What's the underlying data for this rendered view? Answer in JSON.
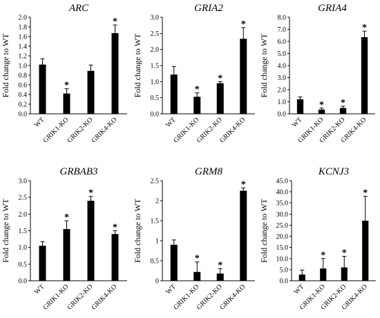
{
  "chart_data": [
    {
      "type": "bar",
      "title": "ARC",
      "ylabel": "Fold change to WT",
      "categories": [
        "WT",
        "GRIK1-KO",
        "GRIK2-KO",
        "GRIK4-KO"
      ],
      "values": [
        1.02,
        0.42,
        0.89,
        1.67
      ],
      "errors": [
        0.12,
        0.1,
        0.12,
        0.17
      ],
      "significant": [
        "",
        "*",
        "",
        "*"
      ],
      "ylim": [
        0,
        2.0
      ],
      "yticks": [
        "0.0",
        "0.2",
        "0.4",
        "0.6",
        "0.8",
        "1.0",
        "1.2",
        "1.4",
        "1.6",
        "1.8",
        "2.0"
      ]
    },
    {
      "type": "bar",
      "title": "GRIA2",
      "ylabel": "Fold change to WT",
      "categories": [
        "WT",
        "GRIK1-KO",
        "GRIK2-KO",
        "GRIK4-KO"
      ],
      "values": [
        1.22,
        0.53,
        0.95,
        2.33
      ],
      "errors": [
        0.25,
        0.12,
        0.05,
        0.35
      ],
      "significant": [
        "",
        "*",
        "*",
        "*"
      ],
      "ylim": [
        0,
        3.0
      ],
      "yticks": [
        "0.0",
        "0.5",
        "1.0",
        "1.5",
        "2.0",
        "2.5",
        "3.0"
      ]
    },
    {
      "type": "bar",
      "title": "GRIA4",
      "ylabel": "Fold change to WT",
      "categories": [
        "WT",
        "GRIK1-KO",
        "GRIK2-KO",
        "GRIK4-KO"
      ],
      "values": [
        1.2,
        0.35,
        0.48,
        6.35
      ],
      "errors": [
        0.2,
        0.12,
        0.15,
        0.5
      ],
      "significant": [
        "",
        "*",
        "*",
        "*"
      ],
      "ylim": [
        0,
        8.0
      ],
      "yticks": [
        "0.0",
        "1.0",
        "2.0",
        "3.0",
        "4.0",
        "5.0",
        "6.0",
        "7.0",
        "8.0"
      ]
    },
    {
      "type": "bar",
      "title": "GRBAB3",
      "ylabel": "Fold change to WT",
      "categories": [
        "WT",
        "GRIK1-KO",
        "GRIK2-KO",
        "GRIK4-KO"
      ],
      "values": [
        1.05,
        1.55,
        2.4,
        1.4
      ],
      "errors": [
        0.12,
        0.25,
        0.13,
        0.1
      ],
      "significant": [
        "",
        "*",
        "*",
        "*"
      ],
      "ylim": [
        0,
        3.0
      ],
      "yticks": [
        "0.0",
        "0.5",
        "1.0",
        "1.5",
        "2.0",
        "2.5",
        "3.0"
      ]
    },
    {
      "type": "bar",
      "title": "GRM8",
      "ylabel": "Fold change to WT",
      "categories": [
        "WT",
        "GRIK1-KO",
        "GRIK2-KO",
        "GRIK4-KO"
      ],
      "values": [
        0.9,
        0.22,
        0.18,
        2.25
      ],
      "errors": [
        0.12,
        0.25,
        0.12,
        0.07
      ],
      "significant": [
        "",
        "*",
        "*",
        "*"
      ],
      "ylim": [
        0,
        2.5
      ],
      "yticks": [
        "0",
        "0.5",
        "1",
        "1.5",
        "2",
        "2.5"
      ]
    },
    {
      "type": "bar",
      "title": "KCNJ3",
      "ylabel": "Fold change to WT",
      "categories": [
        "WT",
        "GRIK1-KO",
        "GRIK2-KO",
        "GRIK4-KO"
      ],
      "values": [
        2.8,
        5.5,
        6.0,
        27.0
      ],
      "errors": [
        2.0,
        4.5,
        5.0,
        11.0
      ],
      "significant": [
        "",
        "*",
        "*",
        "*"
      ],
      "ylim": [
        0,
        45.0
      ],
      "yticks": [
        "0.0",
        "5.0",
        "10.0",
        "15.0",
        "20.0",
        "25.0",
        "30.0",
        "35.0",
        "40.0",
        "45.0"
      ]
    }
  ]
}
